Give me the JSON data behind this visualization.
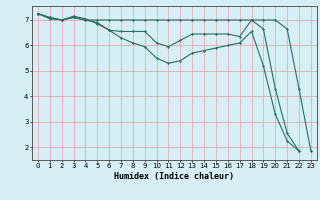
{
  "xlabel": "Humidex (Indice chaleur)",
  "background_color": "#d6eef5",
  "grid_color": "#e8a0a0",
  "line_color": "#2a6e63",
  "xlim": [
    -0.5,
    23.5
  ],
  "ylim": [
    1.5,
    7.55
  ],
  "yticks": [
    2,
    3,
    4,
    5,
    6,
    7
  ],
  "xticks": [
    0,
    1,
    2,
    3,
    4,
    5,
    6,
    7,
    8,
    9,
    10,
    11,
    12,
    13,
    14,
    15,
    16,
    17,
    18,
    19,
    20,
    21,
    22,
    23
  ],
  "line1_x": [
    0,
    1,
    2,
    3,
    4,
    5,
    6,
    7,
    8,
    9,
    10,
    11,
    12,
    13,
    14,
    15,
    16,
    17,
    18,
    19,
    20,
    21,
    22,
    23
  ],
  "line1_y": [
    7.25,
    7.1,
    7.0,
    7.1,
    7.0,
    7.0,
    7.0,
    7.0,
    7.0,
    7.0,
    7.0,
    7.0,
    7.0,
    7.0,
    7.0,
    7.0,
    7.0,
    7.0,
    7.0,
    7.0,
    7.0,
    6.65,
    4.3,
    1.85
  ],
  "line2_x": [
    0,
    1,
    2,
    3,
    4,
    5,
    6,
    7,
    8,
    9,
    10,
    11,
    12,
    13,
    14,
    15,
    16,
    17,
    18,
    19,
    20,
    21,
    22
  ],
  "line2_y": [
    7.25,
    7.1,
    7.0,
    7.15,
    7.05,
    6.85,
    6.6,
    6.55,
    6.55,
    6.55,
    6.1,
    5.95,
    6.2,
    6.45,
    6.45,
    6.45,
    6.45,
    6.35,
    7.0,
    6.65,
    4.3,
    2.55,
    1.85
  ],
  "line3_x": [
    0,
    1,
    2,
    3,
    4,
    5,
    6,
    7,
    8,
    9,
    10,
    11,
    12,
    13,
    14,
    15,
    16,
    17,
    18,
    19,
    20,
    21,
    22
  ],
  "line3_y": [
    7.25,
    7.05,
    7.0,
    7.1,
    7.0,
    6.9,
    6.6,
    6.3,
    6.1,
    5.95,
    5.5,
    5.3,
    5.4,
    5.7,
    5.8,
    5.9,
    6.0,
    6.1,
    6.55,
    5.2,
    3.3,
    2.25,
    1.85
  ]
}
